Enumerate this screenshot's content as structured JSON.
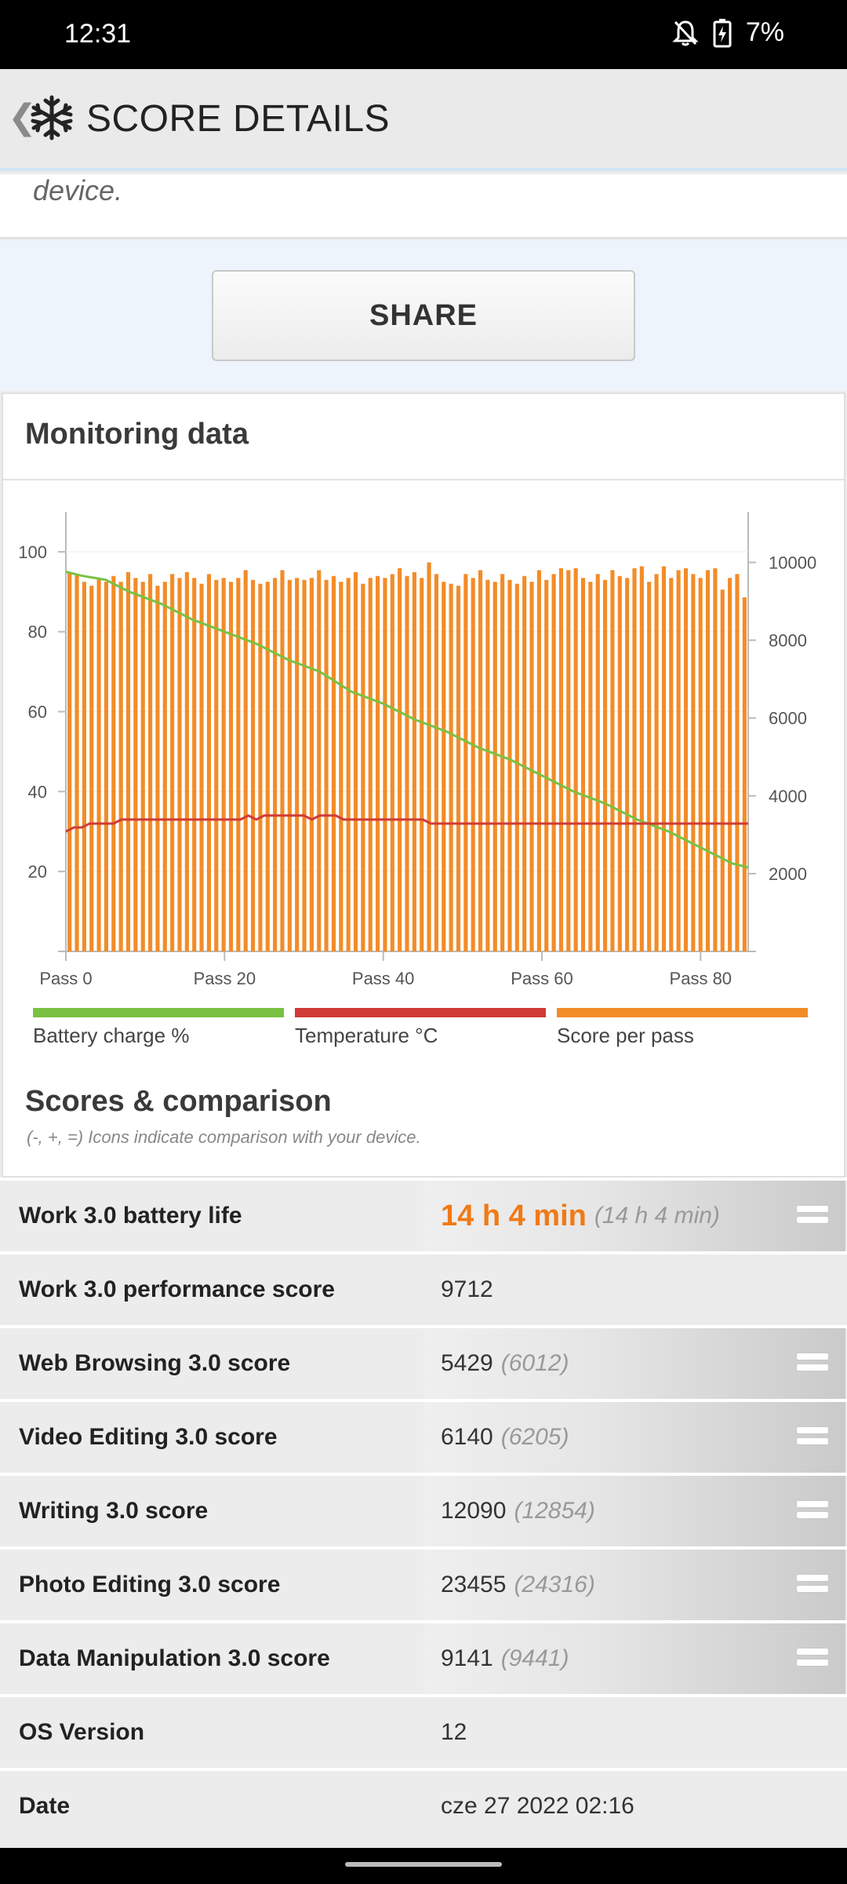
{
  "status_bar": {
    "time": "12:31",
    "battery": "7%"
  },
  "app_bar": {
    "title": "SCORE DETAILS"
  },
  "description": {
    "text": "device."
  },
  "share": {
    "label": "SHARE"
  },
  "monitoring": {
    "title": "Monitoring data",
    "legend": [
      {
        "label": "Battery charge %",
        "color": "#7ac143"
      },
      {
        "label": "Temperature °C",
        "color": "#d03b37"
      },
      {
        "label": "Score per pass",
        "color": "#f28c28"
      }
    ]
  },
  "chart_data": {
    "type": "bar",
    "x_tick_labels": [
      "Pass 0",
      "Pass 20",
      "Pass 40",
      "Pass 60",
      "Pass 80"
    ],
    "x_ticks": [
      0,
      20,
      40,
      60,
      80
    ],
    "x_range": [
      0,
      86
    ],
    "left_axis": {
      "ticks": [
        20,
        40,
        60,
        80,
        100
      ],
      "range": [
        0,
        110
      ]
    },
    "right_axis": {
      "ticks": [
        2000,
        4000,
        6000,
        8000,
        10000
      ],
      "range": [
        0,
        11300
      ]
    },
    "grid": true,
    "series": [
      {
        "name": "Score per pass",
        "type": "bar",
        "axis": "right",
        "color": "#f28c28",
        "values": [
          9750,
          9700,
          9500,
          9400,
          9600,
          9500,
          9650,
          9500,
          9750,
          9600,
          9500,
          9700,
          9400,
          9500,
          9700,
          9600,
          9750,
          9600,
          9450,
          9700,
          9550,
          9600,
          9500,
          9600,
          9800,
          9550,
          9450,
          9500,
          9600,
          9800,
          9550,
          9600,
          9550,
          9600,
          9800,
          9550,
          9650,
          9500,
          9600,
          9750,
          9450,
          9600,
          9650,
          9600,
          9700,
          9850,
          9650,
          9750,
          9600,
          10000,
          9700,
          9500,
          9450,
          9400,
          9700,
          9600,
          9800,
          9550,
          9500,
          9700,
          9550,
          9450,
          9650,
          9500,
          9800,
          9550,
          9700,
          9850,
          9800,
          9850,
          9600,
          9500,
          9700,
          9550,
          9800,
          9650,
          9600,
          9850,
          9900,
          9500,
          9700,
          9900,
          9600,
          9800,
          9850,
          9700,
          9600,
          9800,
          9850,
          9300,
          9600,
          9700,
          9100
        ]
      },
      {
        "name": "Battery charge %",
        "type": "line",
        "axis": "left",
        "color": "#7ac143",
        "x": [
          0,
          2,
          5,
          8,
          12,
          16,
          20,
          24,
          28,
          32,
          36,
          40,
          44,
          48,
          52,
          56,
          60,
          64,
          68,
          72,
          76,
          80,
          84,
          86
        ],
        "y": [
          95,
          94,
          93,
          90,
          87,
          83,
          80,
          77,
          73,
          70,
          65,
          62,
          58,
          55,
          51,
          48,
          44,
          40,
          37,
          33,
          30,
          26,
          22,
          21
        ]
      },
      {
        "name": "Temperature °C",
        "type": "line",
        "axis": "left",
        "color": "#d03b37",
        "x": [
          0,
          1,
          2,
          3,
          6,
          7,
          22,
          23,
          24,
          25,
          30,
          31,
          32,
          33,
          34,
          35,
          45,
          46,
          86
        ],
        "y": [
          30,
          31,
          31,
          32,
          32,
          33,
          33,
          34,
          33,
          34,
          34,
          33,
          34,
          34,
          34,
          33,
          33,
          32,
          32
        ]
      }
    ]
  },
  "scores": {
    "title": "Scores & comparison",
    "note": "(-, +, =) Icons indicate comparison with your device.",
    "rows": [
      {
        "name": "Work 3.0 battery life",
        "value": "14 h 4 min",
        "compare": "(14 h 4 min)",
        "icon": "equal-icon"
      },
      {
        "name": "Work 3.0 performance score",
        "value": "9712",
        "compare": "",
        "icon": ""
      },
      {
        "name": "Web Browsing 3.0 score",
        "value": "5429",
        "compare": "(6012)",
        "icon": "equal-icon"
      },
      {
        "name": "Video Editing 3.0 score",
        "value": "6140",
        "compare": "(6205)",
        "icon": "equal-icon"
      },
      {
        "name": "Writing 3.0 score",
        "value": "12090",
        "compare": "(12854)",
        "icon": "equal-icon"
      },
      {
        "name": "Photo Editing 3.0 score",
        "value": "23455",
        "compare": "(24316)",
        "icon": "equal-icon"
      },
      {
        "name": "Data Manipulation 3.0 score",
        "value": "9141",
        "compare": "(9441)",
        "icon": "equal-icon"
      },
      {
        "name": "OS Version",
        "value": "12",
        "compare": "",
        "icon": ""
      },
      {
        "name": "Date",
        "value": "cze 27 2022 02:16",
        "compare": "",
        "icon": ""
      }
    ]
  }
}
